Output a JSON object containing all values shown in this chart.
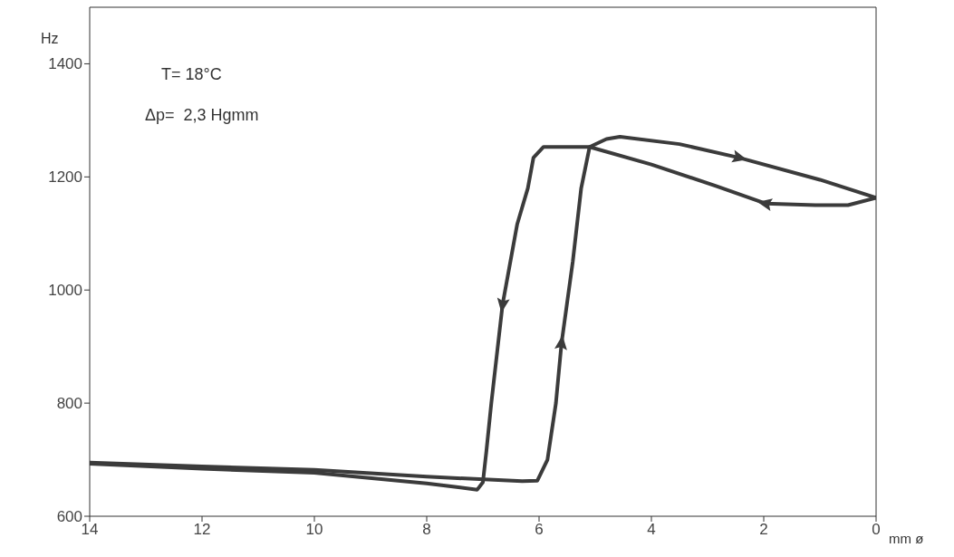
{
  "chart_data": {
    "type": "line",
    "xlabel": "mm ø",
    "ylabel": "Hz",
    "annotations": [
      "T= 18°C",
      "Δp=  2,3 Hgmm"
    ],
    "xlim": [
      14,
      0
    ],
    "xticks": [
      14,
      12,
      10,
      8,
      6,
      4,
      2,
      0
    ],
    "ylim": [
      600,
      1500
    ],
    "yticks": [
      600,
      800,
      1000,
      1200,
      1400
    ],
    "series": [
      {
        "color": "#3b3b3b",
        "x": [
          14,
          12,
          10,
          8,
          6.3,
          6.03,
          5.85,
          5.7,
          5.6,
          5.4,
          5.25,
          5.1,
          4.8,
          4.56,
          3.5,
          2.44,
          1,
          0
        ],
        "values": [
          695,
          688,
          682,
          670,
          662,
          663,
          700,
          800,
          906,
          1050,
          1180,
          1253,
          1267,
          1271,
          1258,
          1234,
          1195,
          1163
        ]
      },
      {
        "color": "#3b3b3b",
        "x": [
          0,
          0.5,
          1.08,
          1.97,
          2.85,
          4,
          5.1,
          5.92,
          6.1,
          6.2,
          6.39,
          6.65,
          6.85,
          6.94,
          7.0,
          7.1,
          7.5,
          8,
          10,
          12,
          14
        ],
        "values": [
          1163,
          1150,
          1150,
          1153,
          1184,
          1222,
          1253,
          1253,
          1234,
          1180,
          1116,
          974,
          800,
          713,
          660,
          647,
          652,
          658,
          677,
          684,
          693
        ]
      }
    ]
  }
}
